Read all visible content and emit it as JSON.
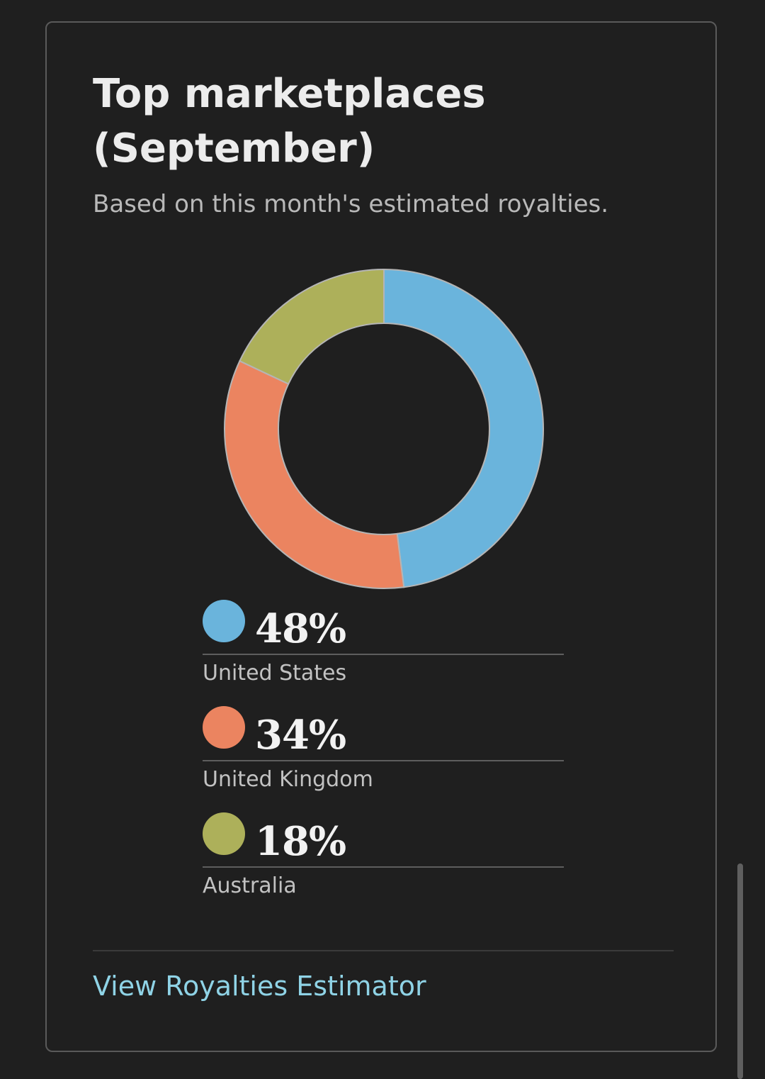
{
  "card": {
    "title": "Top marketplaces (September)",
    "subtitle": "Based on this month's estimated royalties.",
    "link_label": "View Royalties Estimator"
  },
  "colors": {
    "background": "#1f1f1f",
    "border": "#5a5a5a",
    "link": "#8fd3e6",
    "slice_separator": "#b5b5b5"
  },
  "chart_data": {
    "type": "pie",
    "categories": [
      "United States",
      "United Kingdom",
      "Australia"
    ],
    "values": [
      48,
      34,
      18
    ],
    "colors": [
      "#6ab4dc",
      "#eb8460",
      "#adb05a"
    ],
    "legend": [
      {
        "percent": "48%",
        "name": "United States",
        "color": "#6ab4dc"
      },
      {
        "percent": "34%",
        "name": "United Kingdom",
        "color": "#eb8460"
      },
      {
        "percent": "18%",
        "name": "Australia",
        "color": "#adb05a"
      }
    ]
  }
}
